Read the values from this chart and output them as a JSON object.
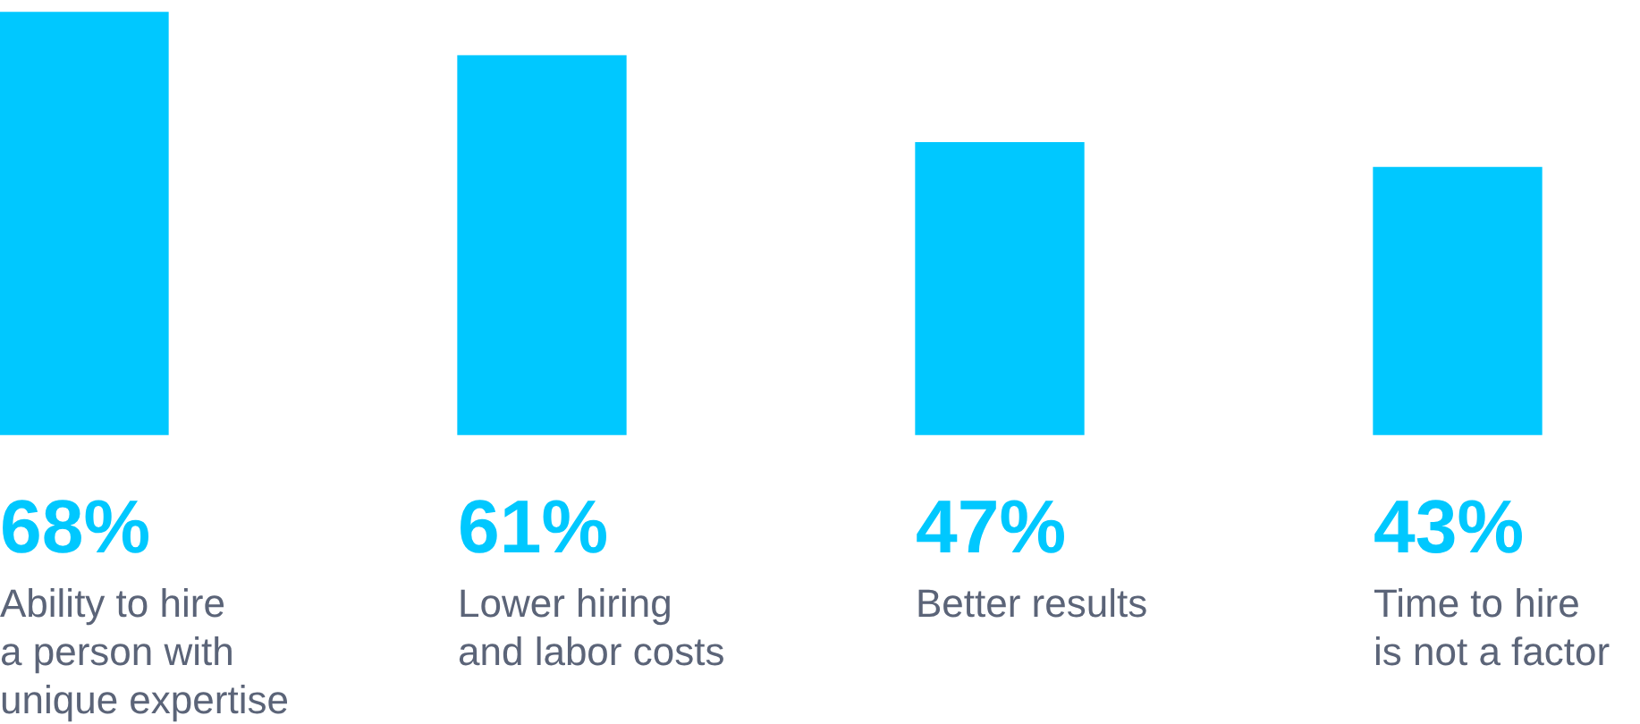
{
  "chart_data": {
    "type": "bar",
    "categories": [
      "Ability to hire\na person with\nunique expertise",
      "Lower hiring\nand labor costs",
      "Better results",
      "Time to hire\nis not a factor"
    ],
    "values": [
      68,
      61,
      47,
      43
    ],
    "value_labels": [
      "68%",
      "61%",
      "47%",
      "43%"
    ],
    "color": "#00c8ff"
  }
}
